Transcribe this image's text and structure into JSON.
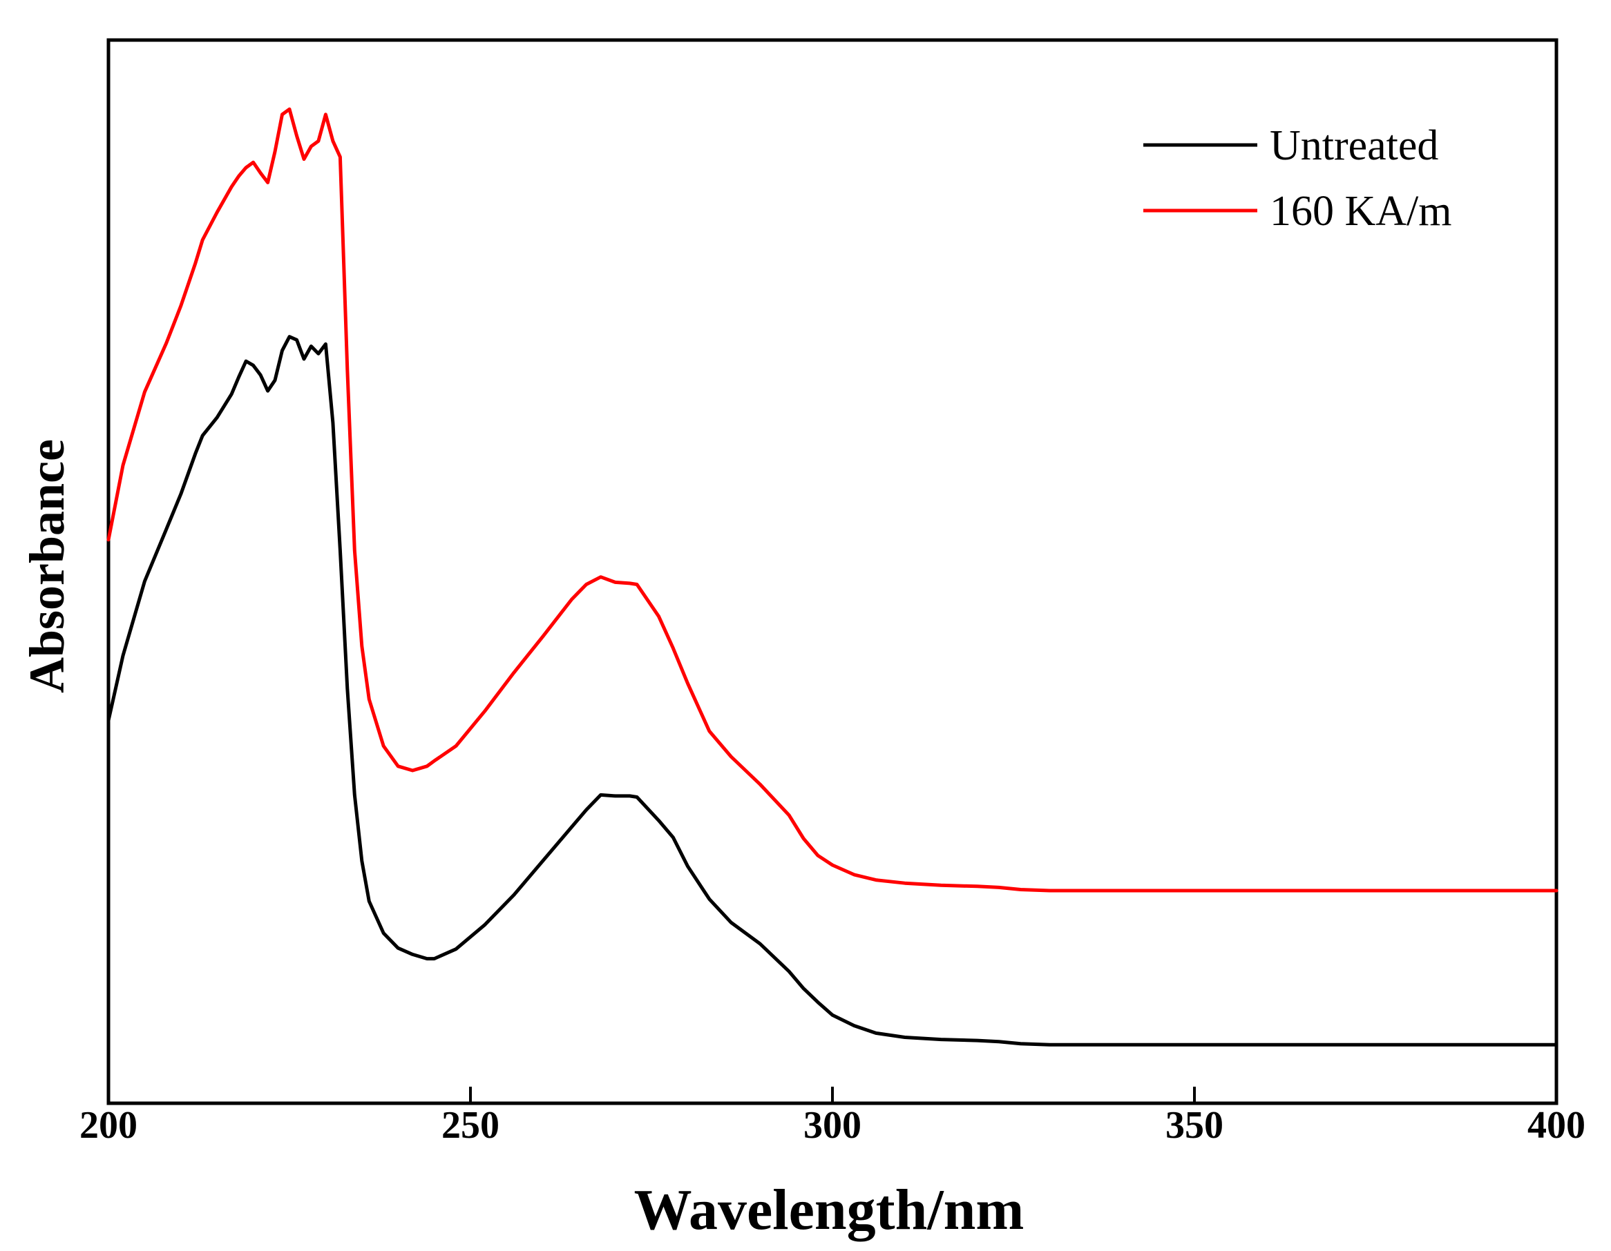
{
  "chart_data": {
    "type": "line",
    "title": "",
    "xlabel": "Wavelength/nm",
    "ylabel": "Absorbance",
    "xlim": [
      200,
      400
    ],
    "ylim": [
      0,
      1
    ],
    "xticks": [
      200,
      250,
      300,
      350,
      400
    ],
    "yticks_shown": false,
    "grid": false,
    "legend_position": "top-right",
    "series": [
      {
        "name": "Untreated",
        "color": "#000000",
        "x": [
          200,
          202,
          205,
          208,
          210,
          212,
          213,
          215,
          217,
          218,
          219,
          220,
          221,
          222,
          223,
          224,
          225,
          226,
          227,
          228,
          229,
          230,
          231,
          232,
          233,
          234,
          235,
          236,
          238,
          240,
          242,
          244,
          245,
          248,
          252,
          256,
          260,
          264,
          266,
          268,
          270,
          272,
          273,
          276,
          278,
          280,
          283,
          286,
          290,
          294,
          296,
          298,
          300,
          303,
          306,
          310,
          315,
          320,
          323,
          326,
          330,
          340,
          350,
          360,
          370,
          380,
          390,
          400
        ],
        "y": [
          0.36,
          0.421,
          0.491,
          0.54,
          0.573,
          0.611,
          0.628,
          0.645,
          0.667,
          0.683,
          0.698,
          0.694,
          0.685,
          0.67,
          0.68,
          0.708,
          0.721,
          0.718,
          0.7,
          0.712,
          0.705,
          0.714,
          0.64,
          0.52,
          0.39,
          0.29,
          0.228,
          0.19,
          0.16,
          0.146,
          0.14,
          0.136,
          0.136,
          0.145,
          0.168,
          0.196,
          0.228,
          0.26,
          0.276,
          0.29,
          0.289,
          0.289,
          0.288,
          0.266,
          0.25,
          0.223,
          0.192,
          0.17,
          0.15,
          0.124,
          0.108,
          0.095,
          0.083,
          0.073,
          0.066,
          0.062,
          0.06,
          0.059,
          0.058,
          0.056,
          0.055,
          0.055,
          0.055,
          0.055,
          0.055,
          0.055,
          0.055,
          0.055
        ]
      },
      {
        "name": "160 KA/m",
        "color": "#ff0000",
        "x": [
          200,
          202,
          205,
          208,
          210,
          212,
          213,
          215,
          217,
          218,
          219,
          220,
          221,
          222,
          223,
          224,
          225,
          226,
          227,
          228,
          229,
          230,
          231,
          232,
          233,
          234,
          235,
          236,
          238,
          240,
          242,
          244,
          245,
          248,
          252,
          256,
          260,
          264,
          266,
          268,
          270,
          272,
          273,
          276,
          278,
          280,
          283,
          286,
          290,
          294,
          296,
          298,
          300,
          303,
          306,
          310,
          315,
          320,
          323,
          326,
          330,
          340,
          350,
          360,
          370,
          380,
          390,
          400
        ],
        "y": [
          0.53,
          0.6,
          0.669,
          0.715,
          0.75,
          0.79,
          0.812,
          0.838,
          0.862,
          0.872,
          0.88,
          0.885,
          0.875,
          0.866,
          0.895,
          0.93,
          0.935,
          0.91,
          0.888,
          0.9,
          0.905,
          0.93,
          0.905,
          0.89,
          0.69,
          0.52,
          0.43,
          0.38,
          0.336,
          0.317,
          0.313,
          0.317,
          0.322,
          0.336,
          0.369,
          0.405,
          0.439,
          0.474,
          0.488,
          0.495,
          0.49,
          0.489,
          0.488,
          0.458,
          0.428,
          0.395,
          0.35,
          0.326,
          0.3,
          0.271,
          0.249,
          0.233,
          0.224,
          0.215,
          0.21,
          0.207,
          0.205,
          0.204,
          0.203,
          0.201,
          0.2,
          0.2,
          0.2,
          0.2,
          0.2,
          0.2,
          0.2,
          0.2
        ]
      }
    ]
  }
}
